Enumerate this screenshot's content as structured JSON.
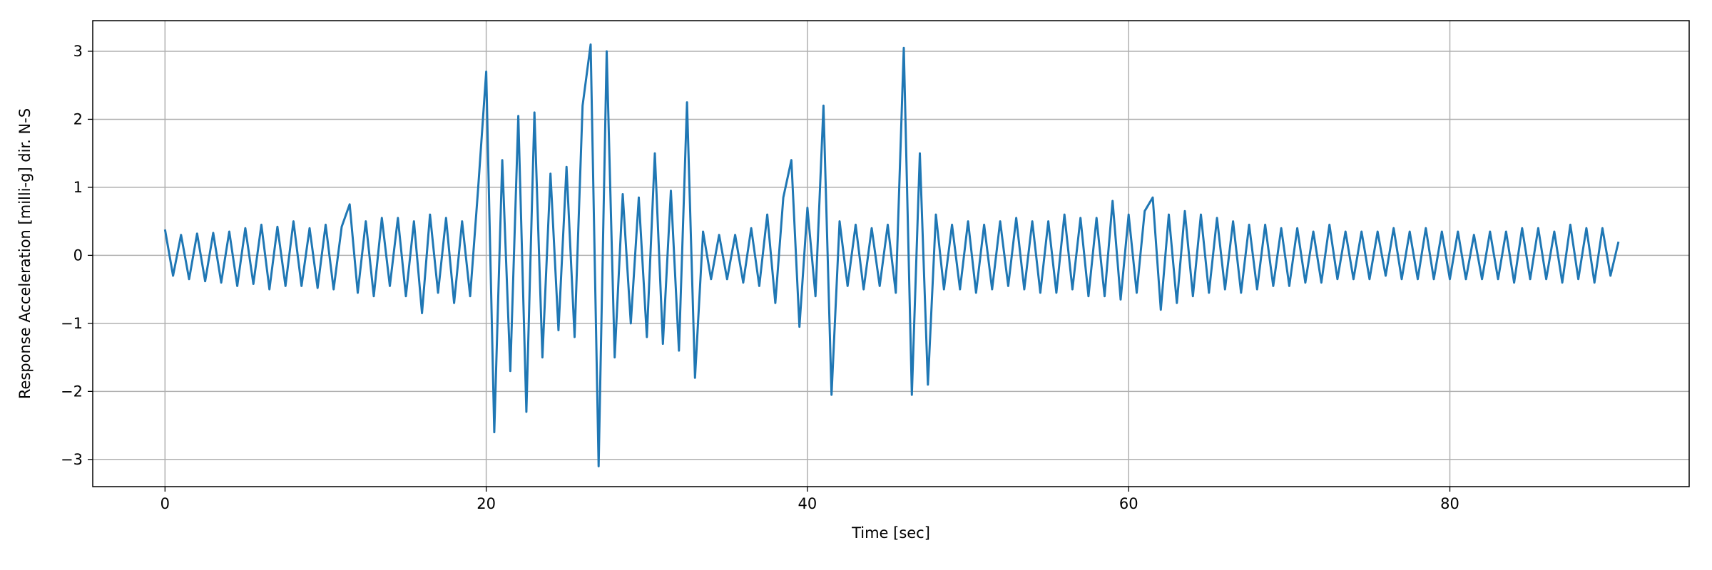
{
  "chart_data": {
    "type": "line",
    "xlabel": "Time [sec]",
    "ylabel": "Response Acceleration [milli-g] dir. N-S",
    "color": "#1f77b4",
    "grid": true,
    "xlim": [
      -4.5,
      94.9
    ],
    "ylim": [
      -3.4,
      3.45
    ],
    "xticks": [
      0,
      20,
      40,
      60,
      80
    ],
    "yticks": [
      {
        "value": -3,
        "label": "−3"
      },
      {
        "value": -2,
        "label": "−2"
      },
      {
        "value": -1,
        "label": "−1"
      },
      0,
      1,
      2,
      3
    ],
    "x": [
      0,
      0.5,
      1,
      1.5,
      2,
      2.5,
      3,
      3.5,
      4,
      4.5,
      5,
      5.5,
      6,
      6.5,
      7,
      7.5,
      8,
      8.5,
      9,
      9.5,
      10,
      10.5,
      11,
      11.5,
      12,
      12.5,
      13,
      13.5,
      14,
      14.5,
      15,
      15.5,
      16,
      16.5,
      17,
      17.5,
      18,
      18.5,
      19,
      19.5,
      20,
      20.5,
      21,
      21.5,
      22,
      22.5,
      23,
      23.5,
      24,
      24.5,
      25,
      25.5,
      26,
      26.5,
      27,
      27.5,
      28,
      28.5,
      29,
      29.5,
      30,
      30.5,
      31,
      31.5,
      32,
      32.5,
      33,
      33.5,
      34,
      34.5,
      35,
      35.5,
      36,
      36.5,
      37,
      37.5,
      38,
      38.5,
      39,
      39.5,
      40,
      40.5,
      41,
      41.5,
      42,
      42.5,
      43,
      43.5,
      44,
      44.5,
      45,
      45.5,
      46,
      46.5,
      47,
      47.5,
      48,
      48.5,
      49,
      49.5,
      50,
      50.5,
      51,
      51.5,
      52,
      52.5,
      53,
      53.5,
      54,
      54.5,
      55,
      55.5,
      56,
      56.5,
      57,
      57.5,
      58,
      58.5,
      59,
      59.5,
      60,
      60.5,
      61,
      61.5,
      62,
      62.5,
      63,
      63.5,
      64,
      64.5,
      65,
      65.5,
      66,
      66.5,
      67,
      67.5,
      68,
      68.5,
      69,
      69.5,
      70,
      70.5,
      71,
      71.5,
      72,
      72.5,
      73,
      73.5,
      74,
      74.5,
      75,
      75.5,
      76,
      76.5,
      77,
      77.5,
      78,
      78.5,
      79,
      79.5,
      80,
      80.5,
      81,
      81.5,
      82,
      82.5,
      83,
      83.5,
      84,
      84.5,
      85,
      85.5,
      86,
      86.5,
      87,
      87.5,
      88,
      88.5,
      89,
      89.5,
      90,
      90.5
    ],
    "values": [
      0.38,
      -0.3,
      0.3,
      -0.35,
      0.32,
      -0.38,
      0.33,
      -0.4,
      0.35,
      -0.45,
      0.4,
      -0.42,
      0.45,
      -0.5,
      0.42,
      -0.45,
      0.5,
      -0.45,
      0.4,
      -0.48,
      0.45,
      -0.5,
      0.42,
      0.75,
      -0.55,
      0.5,
      -0.6,
      0.55,
      -0.45,
      0.55,
      -0.6,
      0.5,
      -0.85,
      0.6,
      -0.55,
      0.55,
      -0.7,
      0.5,
      -0.6,
      1.0,
      2.7,
      -2.6,
      1.4,
      -1.7,
      2.05,
      -2.3,
      2.1,
      -1.5,
      1.2,
      -1.1,
      1.3,
      -1.2,
      2.2,
      3.1,
      -3.1,
      3.0,
      -1.5,
      0.9,
      -1.0,
      0.85,
      -1.2,
      1.5,
      -1.3,
      0.95,
      -1.4,
      2.25,
      -1.8,
      0.35,
      -0.35,
      0.3,
      -0.35,
      0.3,
      -0.4,
      0.4,
      -0.45,
      0.6,
      -0.7,
      0.85,
      1.4,
      -1.05,
      0.7,
      -0.6,
      2.2,
      -2.05,
      0.5,
      -0.45,
      0.45,
      -0.5,
      0.4,
      -0.45,
      0.45,
      -0.55,
      3.05,
      -2.05,
      1.5,
      -1.9,
      0.6,
      -0.5,
      0.45,
      -0.5,
      0.5,
      -0.55,
      0.45,
      -0.5,
      0.5,
      -0.45,
      0.55,
      -0.5,
      0.5,
      -0.55,
      0.5,
      -0.55,
      0.6,
      -0.5,
      0.55,
      -0.6,
      0.55,
      -0.6,
      0.8,
      -0.65,
      0.6,
      -0.55,
      0.65,
      0.85,
      -0.8,
      0.6,
      -0.7,
      0.65,
      -0.6,
      0.6,
      -0.55,
      0.55,
      -0.5,
      0.5,
      -0.55,
      0.45,
      -0.5,
      0.45,
      -0.45,
      0.4,
      -0.45,
      0.4,
      -0.4,
      0.35,
      -0.4,
      0.45,
      -0.35,
      0.35,
      -0.35,
      0.35,
      -0.35,
      0.35,
      -0.3,
      0.4,
      -0.35,
      0.35,
      -0.35,
      0.4,
      -0.35,
      0.35,
      -0.35,
      0.35,
      -0.35,
      0.3,
      -0.35,
      0.35,
      -0.35,
      0.35,
      -0.4,
      0.4,
      -0.35,
      0.4,
      -0.35,
      0.35,
      -0.4,
      0.45,
      -0.35,
      0.4,
      -0.4,
      0.4,
      -0.3,
      0.2
    ]
  }
}
